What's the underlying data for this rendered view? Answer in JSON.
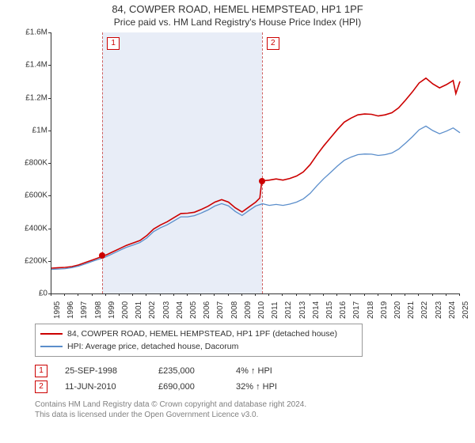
{
  "title": "84, COWPER ROAD, HEMEL HEMPSTEAD, HP1 1PF",
  "subtitle": "Price paid vs. HM Land Registry's House Price Index (HPI)",
  "chart": {
    "type": "line",
    "background_color": "#ffffff",
    "shaded_region_color": "#e8edf7",
    "marker_line_color": "#d06060",
    "axis_color": "#333333",
    "label_fontsize": 10,
    "ylim": [
      0,
      1600000
    ],
    "ytick_step": 200000,
    "y_labels": [
      "£0",
      "£200K",
      "£400K",
      "£600K",
      "£800K",
      "£1M",
      "£1.2M",
      "£1.4M",
      "£1.6M"
    ],
    "xlim": [
      1995,
      2025
    ],
    "x_labels": [
      "1995",
      "1996",
      "1997",
      "1998",
      "1999",
      "2000",
      "2001",
      "2002",
      "2003",
      "2004",
      "2005",
      "2006",
      "2007",
      "2008",
      "2009",
      "2010",
      "2011",
      "2012",
      "2013",
      "2014",
      "2015",
      "2016",
      "2017",
      "2018",
      "2019",
      "2020",
      "2021",
      "2022",
      "2023",
      "2024",
      "2025"
    ],
    "shaded_ranges": [
      [
        1998.73,
        2010.45
      ]
    ],
    "series": [
      {
        "name": "price_paid",
        "label": "84, COWPER ROAD, HEMEL HEMPSTEAD, HP1 1PF (detached house)",
        "color": "#cc0000",
        "line_width": 1.6,
        "data": [
          [
            1995.0,
            155000
          ],
          [
            1995.5,
            158000
          ],
          [
            1996.0,
            160000
          ],
          [
            1996.5,
            165000
          ],
          [
            1997.0,
            175000
          ],
          [
            1997.5,
            190000
          ],
          [
            1998.0,
            205000
          ],
          [
            1998.5,
            220000
          ],
          [
            1998.73,
            235000
          ],
          [
            1999.0,
            235000
          ],
          [
            1999.5,
            255000
          ],
          [
            2000.0,
            275000
          ],
          [
            2000.5,
            295000
          ],
          [
            2001.0,
            310000
          ],
          [
            2001.5,
            325000
          ],
          [
            2002.0,
            355000
          ],
          [
            2002.5,
            395000
          ],
          [
            2003.0,
            420000
          ],
          [
            2003.5,
            440000
          ],
          [
            2004.0,
            465000
          ],
          [
            2004.5,
            490000
          ],
          [
            2005.0,
            492000
          ],
          [
            2005.5,
            498000
          ],
          [
            2006.0,
            515000
          ],
          [
            2006.5,
            535000
          ],
          [
            2007.0,
            560000
          ],
          [
            2007.5,
            575000
          ],
          [
            2008.0,
            560000
          ],
          [
            2008.5,
            525000
          ],
          [
            2009.0,
            500000
          ],
          [
            2009.5,
            530000
          ],
          [
            2010.0,
            560000
          ],
          [
            2010.3,
            585000
          ],
          [
            2010.45,
            690000
          ],
          [
            2011.0,
            695000
          ],
          [
            2011.5,
            702000
          ],
          [
            2012.0,
            695000
          ],
          [
            2012.5,
            705000
          ],
          [
            2013.0,
            720000
          ],
          [
            2013.5,
            745000
          ],
          [
            2014.0,
            790000
          ],
          [
            2014.5,
            850000
          ],
          [
            2015.0,
            905000
          ],
          [
            2015.5,
            955000
          ],
          [
            2016.0,
            1005000
          ],
          [
            2016.5,
            1050000
          ],
          [
            2017.0,
            1075000
          ],
          [
            2017.5,
            1095000
          ],
          [
            2018.0,
            1100000
          ],
          [
            2018.5,
            1098000
          ],
          [
            2019.0,
            1088000
          ],
          [
            2019.5,
            1095000
          ],
          [
            2020.0,
            1108000
          ],
          [
            2020.5,
            1138000
          ],
          [
            2021.0,
            1185000
          ],
          [
            2021.5,
            1235000
          ],
          [
            2022.0,
            1290000
          ],
          [
            2022.5,
            1320000
          ],
          [
            2023.0,
            1285000
          ],
          [
            2023.5,
            1260000
          ],
          [
            2024.0,
            1280000
          ],
          [
            2024.5,
            1305000
          ],
          [
            2024.7,
            1225000
          ],
          [
            2025.0,
            1300000
          ]
        ]
      },
      {
        "name": "hpi",
        "label": "HPI: Average price, detached house, Dacorum",
        "color": "#5b8ecb",
        "line_width": 1.3,
        "data": [
          [
            1995.0,
            148000
          ],
          [
            1995.5,
            150000
          ],
          [
            1996.0,
            152000
          ],
          [
            1996.5,
            158000
          ],
          [
            1997.0,
            168000
          ],
          [
            1997.5,
            182000
          ],
          [
            1998.0,
            197000
          ],
          [
            1998.5,
            211000
          ],
          [
            1999.0,
            225000
          ],
          [
            1999.5,
            244000
          ],
          [
            2000.0,
            264000
          ],
          [
            2000.5,
            283000
          ],
          [
            2001.0,
            297000
          ],
          [
            2001.5,
            312000
          ],
          [
            2002.0,
            340000
          ],
          [
            2002.5,
            379000
          ],
          [
            2003.0,
            403000
          ],
          [
            2003.5,
            421000
          ],
          [
            2004.0,
            445000
          ],
          [
            2004.5,
            470000
          ],
          [
            2005.0,
            470000
          ],
          [
            2005.5,
            477000
          ],
          [
            2006.0,
            493000
          ],
          [
            2006.5,
            512000
          ],
          [
            2007.0,
            536000
          ],
          [
            2007.5,
            551000
          ],
          [
            2008.0,
            537000
          ],
          [
            2008.5,
            503000
          ],
          [
            2009.0,
            478000
          ],
          [
            2009.5,
            508000
          ],
          [
            2010.0,
            536000
          ],
          [
            2010.5,
            550000
          ],
          [
            2011.0,
            540000
          ],
          [
            2011.5,
            546000
          ],
          [
            2012.0,
            540000
          ],
          [
            2012.5,
            548000
          ],
          [
            2013.0,
            560000
          ],
          [
            2013.5,
            580000
          ],
          [
            2014.0,
            614000
          ],
          [
            2014.5,
            661000
          ],
          [
            2015.0,
            704000
          ],
          [
            2015.5,
            742000
          ],
          [
            2016.0,
            781000
          ],
          [
            2016.5,
            816000
          ],
          [
            2017.0,
            836000
          ],
          [
            2017.5,
            851000
          ],
          [
            2018.0,
            855000
          ],
          [
            2018.5,
            854000
          ],
          [
            2019.0,
            846000
          ],
          [
            2019.5,
            851000
          ],
          [
            2020.0,
            861000
          ],
          [
            2020.5,
            885000
          ],
          [
            2021.0,
            921000
          ],
          [
            2021.5,
            960000
          ],
          [
            2022.0,
            1003000
          ],
          [
            2022.5,
            1026000
          ],
          [
            2023.0,
            999000
          ],
          [
            2023.5,
            979000
          ],
          [
            2024.0,
            995000
          ],
          [
            2024.5,
            1015000
          ],
          [
            2025.0,
            985000
          ]
        ]
      }
    ],
    "sale_markers": [
      {
        "n": 1,
        "x": 1998.73,
        "y": 235000
      },
      {
        "n": 2,
        "x": 2010.45,
        "y": 690000
      }
    ]
  },
  "legend": {
    "border_color": "#999999",
    "items": [
      {
        "color": "#cc0000",
        "label": "84, COWPER ROAD, HEMEL HEMPSTEAD, HP1 1PF (detached house)"
      },
      {
        "color": "#5b8ecb",
        "label": "HPI: Average price, detached house, Dacorum"
      }
    ]
  },
  "sales": [
    {
      "n": "1",
      "date": "25-SEP-1998",
      "price": "£235,000",
      "pct": "4%",
      "arrow": "↑",
      "suffix": "HPI"
    },
    {
      "n": "2",
      "date": "11-JUN-2010",
      "price": "£690,000",
      "pct": "32%",
      "arrow": "↑",
      "suffix": "HPI"
    }
  ],
  "attribution": {
    "line1": "Contains HM Land Registry data © Crown copyright and database right 2024.",
    "line2": "This data is licensed under the Open Government Licence v3.0."
  }
}
